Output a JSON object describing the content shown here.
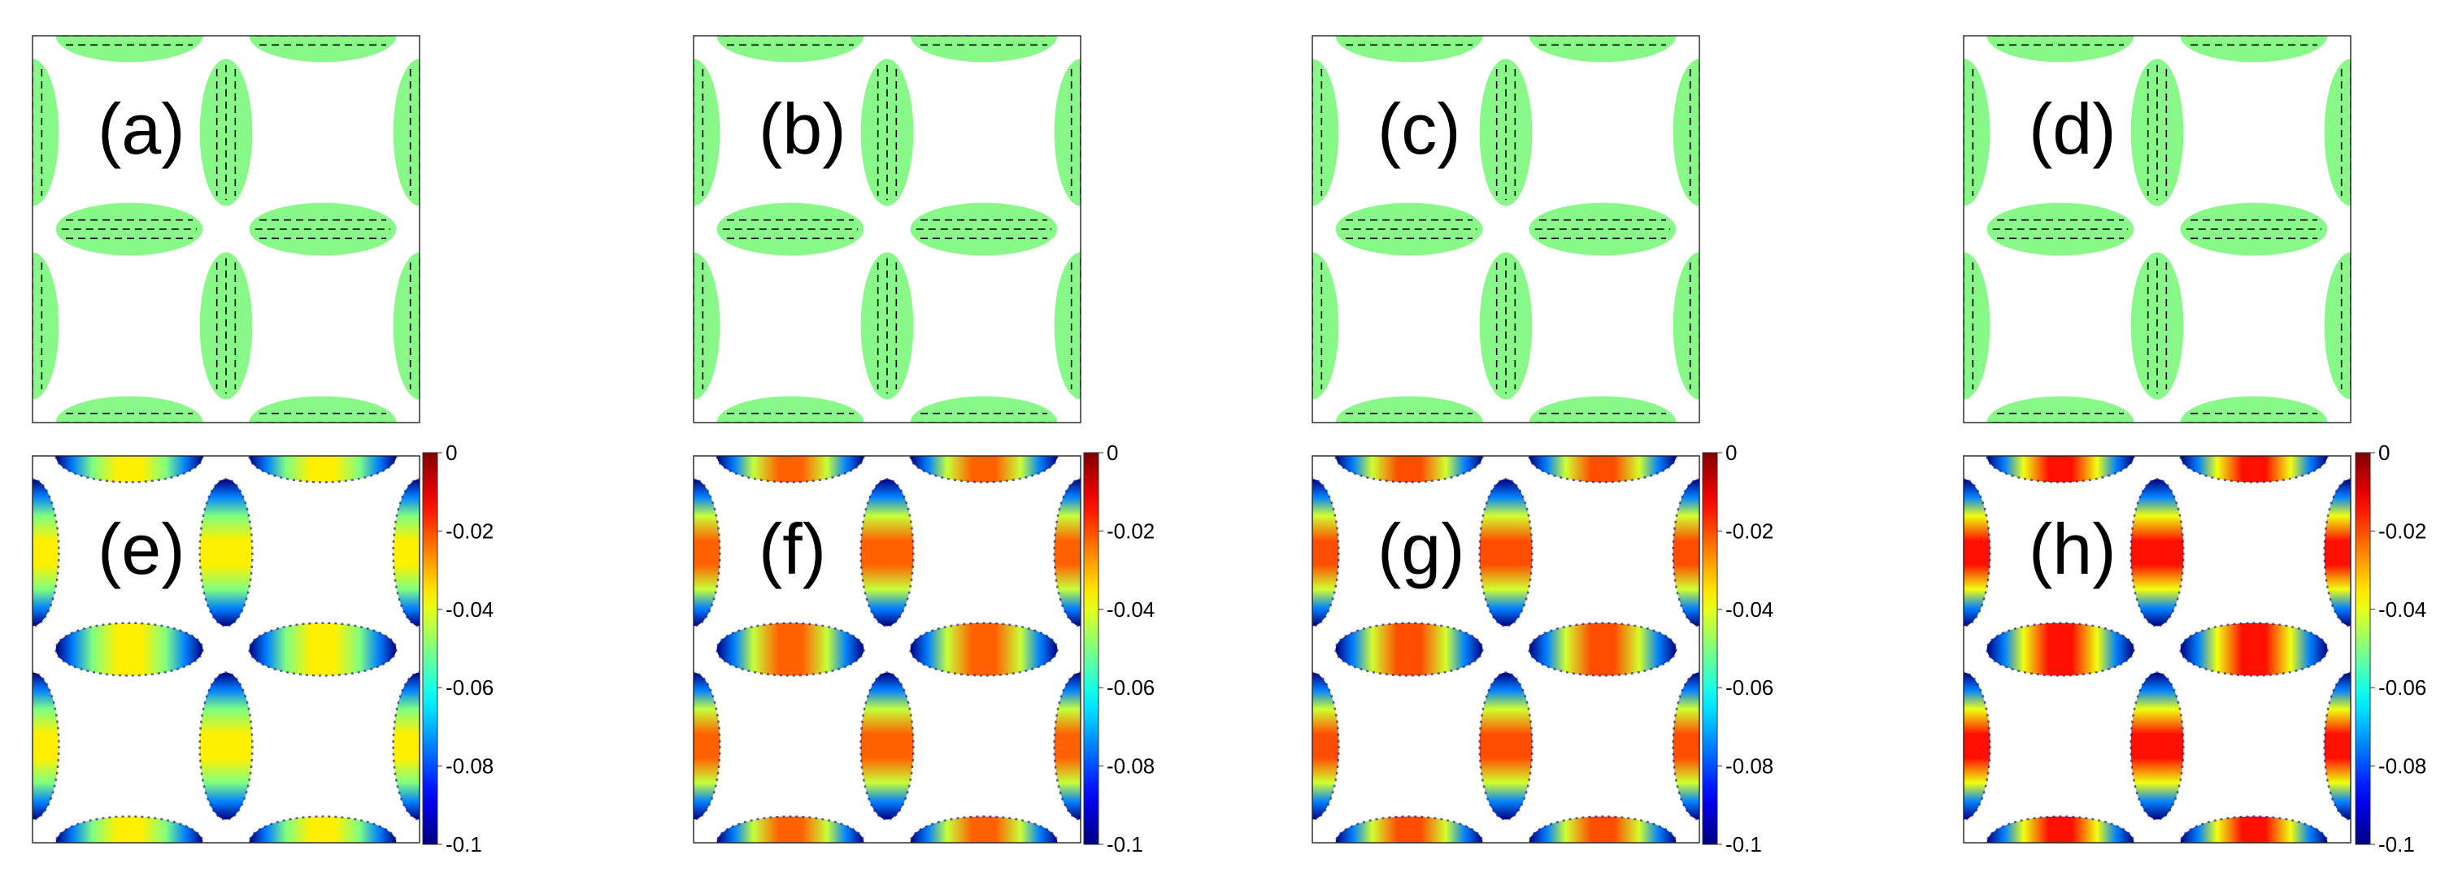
{
  "chart_data": [
    {
      "type": "heatmap",
      "title": "",
      "panels": [
        {
          "label": "(a)",
          "content": "green ellipses with dashed black director lines"
        },
        {
          "label": "(b)",
          "content": "green ellipses with dashed black director lines"
        },
        {
          "label": "(c)",
          "content": "green ellipses with dashed black director lines"
        },
        {
          "label": "(d)",
          "content": "green ellipses with dashed black director lines"
        }
      ],
      "fill_color": "#88f888"
    },
    {
      "type": "heatmap",
      "title": "",
      "panels": [
        {
          "label": "(e)",
          "min_value": -0.1,
          "max_value": 0,
          "center_value": -0.036
        },
        {
          "label": "(f)",
          "min_value": -0.1,
          "max_value": 0,
          "center_value": -0.022
        },
        {
          "label": "(g)",
          "min_value": -0.1,
          "max_value": 0,
          "center_value": -0.02
        },
        {
          "label": "(h)",
          "min_value": -0.1,
          "max_value": 0,
          "center_value": -0.014
        }
      ],
      "colorbar": {
        "colormap": "jet",
        "range": [
          -0.1,
          0
        ],
        "ticks": [
          0,
          -0.02,
          -0.04,
          -0.06,
          -0.08,
          -0.1
        ],
        "tick_labels": [
          "0",
          "-0.02",
          "-0.04",
          "-0.06",
          "-0.08",
          "-0.1"
        ]
      }
    }
  ]
}
